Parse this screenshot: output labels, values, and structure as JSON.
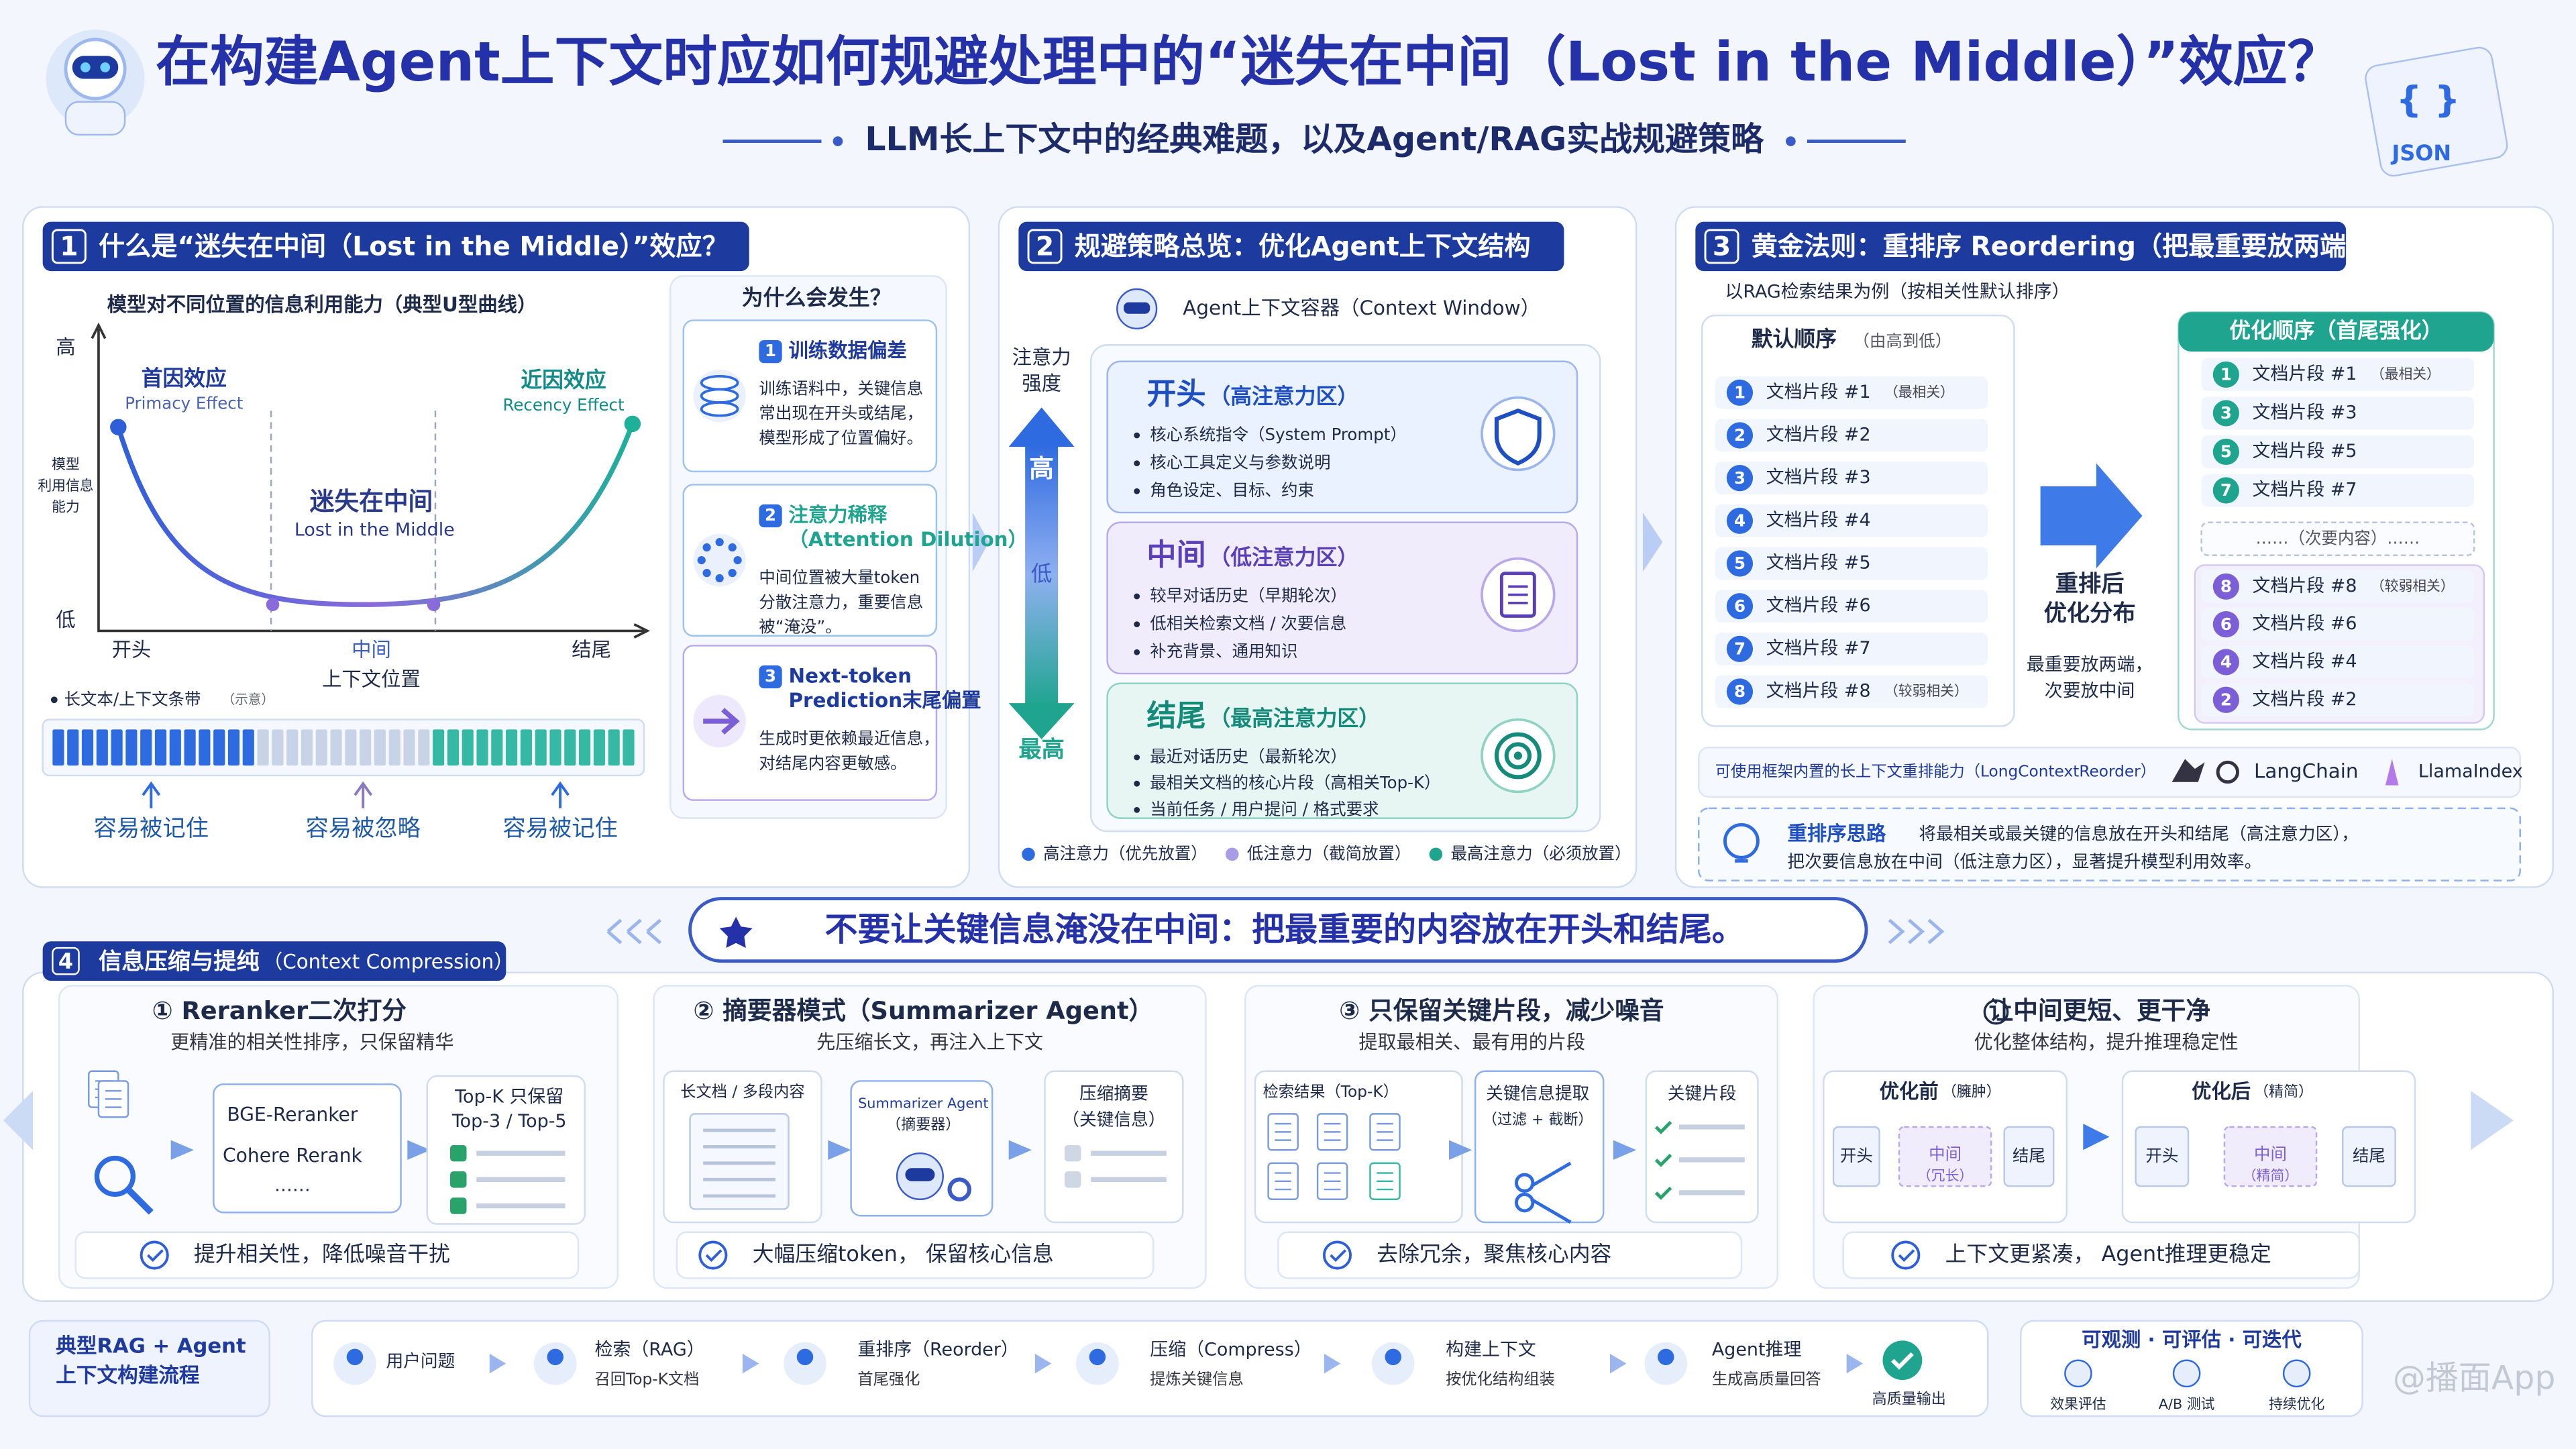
{
  "header": {
    "title": "在构建Agent上下文时应如何规避处理中的“迷失在中间（Lost in the Middle）”效应？",
    "subtitle": "LLM长上下文中的经典难题，以及Agent/RAG实战规避策略",
    "json_braces": "{ }",
    "json_label": "JSON"
  },
  "s1": {
    "num": 1,
    "title": "什么是“迷失在中间（Lost in the Middle）”效应？",
    "chart_title": "模型对不同位置的信息利用能力（典型U型曲线）",
    "y_high": "高",
    "y_low": "低",
    "y_label": [
      "模型",
      "利用信息",
      "能力"
    ],
    "primacy": [
      "首因效应",
      "Primacy Effect"
    ],
    "recency": [
      "近因效应",
      "Recency Effect"
    ],
    "middle": [
      "迷失在中间",
      "Lost in the Middle"
    ],
    "x_labels": [
      "开头",
      "中间",
      "结尾"
    ],
    "x_title": "上下文位置",
    "strip_label": "长文本/上下文条带",
    "strip_note": "（示意）",
    "strip_marks": [
      "容易被记住",
      "容易被忽略",
      "容易被记住"
    ],
    "why_title": "为什么会发生？",
    "reasons": [
      {
        "num": 1,
        "title": [
          "训练数据偏差"
        ],
        "body": [
          "训练语料中，关键信息",
          "常出现在开头或结尾，",
          "模型形成了位置偏好。"
        ]
      },
      {
        "num": 2,
        "title": [
          "注意力稀释",
          "（Attention Dilution）"
        ],
        "body": [
          "中间位置被大量token",
          "分散注意力，重要信息",
          "被“淹没”。"
        ]
      },
      {
        "num": 3,
        "title": [
          "Next-token",
          "Prediction末尾偏置"
        ],
        "body": [
          "生成时更依赖最近信息，",
          "对结尾内容更敏感。"
        ]
      }
    ]
  },
  "s2": {
    "num": 2,
    "title": "规避策略总览：优化Agent上下文结构",
    "container": "Agent上下文容器（Context Window）",
    "axis_label": [
      "注意力",
      "强度"
    ],
    "axis_high": "高",
    "axis_low": "低",
    "axis_top": "最高",
    "zones": [
      {
        "title": "开头",
        "sub": "（高注意力区）",
        "items": [
          "核心系统指令（System Prompt）",
          "核心工具定义与参数说明",
          "角色设定、目标、约束"
        ]
      },
      {
        "title": "中间",
        "sub": "（低注意力区）",
        "items": [
          "较早对话历史（早期轮次）",
          "低相关检索文档 / 次要信息",
          "补充背景、通用知识"
        ]
      },
      {
        "title": "结尾",
        "sub": "（最高注意力区）",
        "items": [
          "最近对话历史（最新轮次）",
          "最相关文档的核心片段（高相关Top-K）",
          "当前任务 / 用户提问 / 格式要求"
        ]
      }
    ],
    "legend": [
      "高注意力（优先放置）",
      "低注意力（截简放置）",
      "最高注意力（必须放置）"
    ]
  },
  "s3": {
    "num": 3,
    "title": "黄金法则：重排序 Reordering（把最重要放两端）",
    "note": "以RAG检索结果为例（按相关性默认排序）",
    "default_title": "默认顺序",
    "default_sub": "（由高到低）",
    "default_items": [
      {
        "num": 1,
        "text": "文档片段 #1",
        "note": "（最相关）"
      },
      {
        "num": 2,
        "text": "文档片段 #2"
      },
      {
        "num": 3,
        "text": "文档片段 #3"
      },
      {
        "num": 4,
        "text": "文档片段 #4"
      },
      {
        "num": 5,
        "text": "文档片段 #5"
      },
      {
        "num": 6,
        "text": "文档片段 #6"
      },
      {
        "num": 7,
        "text": "文档片段 #7"
      },
      {
        "num": 8,
        "text": "文档片段 #8",
        "note": "（较弱相关）"
      }
    ],
    "arrow_label": [
      "重排后",
      "优化分布"
    ],
    "arrow_desc": [
      "最重要放两端，",
      "次要放中间"
    ],
    "opt_title": "优化顺序（首尾强化）",
    "opt_top": [
      {
        "num": 1,
        "text": "文档片段 #1",
        "note": "（最相关）"
      },
      {
        "num": 3,
        "text": "文档片段 #3"
      },
      {
        "num": 5,
        "text": "文档片段 #5"
      },
      {
        "num": 7,
        "text": "文档片段 #7"
      }
    ],
    "opt_gap": "……（次要内容）……",
    "opt_bottom": [
      {
        "num": 8,
        "text": "文档片段 #8",
        "note": "（较弱相关）"
      },
      {
        "num": 6,
        "text": "文档片段 #6"
      },
      {
        "num": 4,
        "text": "文档片段 #4"
      },
      {
        "num": 2,
        "text": "文档片段 #2"
      }
    ],
    "tools_note": "可使用框架内置的长上下文重排能力（LongContextReorder）",
    "tools": [
      "LangChain",
      "LlamaIndex"
    ],
    "tip_title": "重排序思路",
    "tip_body": [
      "将最相关或最关键的信息放在开头和结尾（高注意力区），",
      "把次要信息放在中间（低注意力区），显著提升模型利用效率。"
    ]
  },
  "banner": "不要让关键信息淹没在中间：把最重要的内容放在开头和结尾。",
  "s4": {
    "num": 4,
    "title": "信息压缩与提纯",
    "sub": "（Context Compression）",
    "cards": [
      {
        "title": "① Reranker二次打分",
        "sub": "更精准的相关性排序，只保留精华",
        "labels": [
          "BGE-Reranker",
          "Cohere Rerank",
          "……",
          "Top-K 只保留",
          "Top-3 / Top-5"
        ],
        "footer": "提升相关性，降低噪音干扰"
      },
      {
        "title": "② 摘要器模式（Summarizer Agent）",
        "sub": "先压缩长文，再注入上下文",
        "labels": [
          "长文档 / 多段内容",
          "Summarizer Agent",
          "（摘要器）",
          "压缩摘要",
          "（关键信息）"
        ],
        "footer": "大幅压缩token， 保留核心信息"
      },
      {
        "title": "③ 只保留关键片段，减少噪音",
        "sub": "提取最相关、最有用的片段",
        "labels": [
          "检索结果（Top-K）",
          "关键信息提取",
          "（过滤 + 截断）",
          "关键片段"
        ],
        "footer": "去除冗余，聚焦核心内容"
      },
      {
        "title": "让中间更短、更干净",
        "sub": "优化整体结构，提升推理稳定性",
        "labels": [
          "优化前",
          "（臃肿）",
          "开头",
          "中间",
          "（冗长）",
          "结尾",
          "优化后",
          "（精简）",
          "开头",
          "中间",
          "（精简）",
          "结尾"
        ],
        "footer": "上下文更紧凑， Agent推理更稳定"
      }
    ]
  },
  "flow": {
    "label": [
      "典型RAG + Agent",
      "上下文构建流程"
    ],
    "steps": [
      {
        "title": "用户问题"
      },
      {
        "title": "检索（RAG）",
        "desc": "召回Top-K文档"
      },
      {
        "title": "重排序（Reorder）",
        "desc": "首尾强化"
      },
      {
        "title": "压缩（Compress）",
        "desc": "提炼关键信息"
      },
      {
        "title": "构建上下文",
        "desc": "按优化结构组装"
      },
      {
        "title": "Agent推理",
        "desc": "生成高质量回答"
      },
      {
        "title": "高质量输出"
      }
    ],
    "ops_title": "可观测 · 可评估 · 可迭代",
    "ops": [
      "效果评估",
      "A/B 测试",
      "持续优化"
    ]
  },
  "watermark": "@播面App"
}
